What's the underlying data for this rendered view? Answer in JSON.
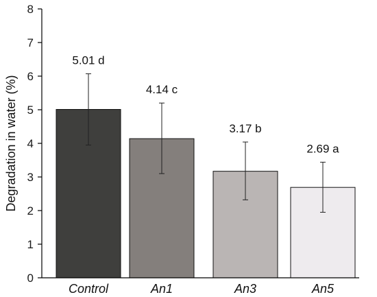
{
  "chart_data": {
    "type": "bar",
    "title": "",
    "xlabel": "",
    "ylabel": "Degradation in water (%)",
    "ylim": [
      0,
      8
    ],
    "yticks": [
      0,
      1,
      2,
      3,
      4,
      5,
      6,
      7,
      8
    ],
    "categories": [
      "Control",
      "An1",
      "An3",
      "An5"
    ],
    "values": [
      5.01,
      4.14,
      3.17,
      2.69
    ],
    "error_low": [
      3.95,
      3.1,
      2.32,
      1.95
    ],
    "error_high": [
      6.07,
      5.2,
      4.04,
      3.44
    ],
    "data_labels": [
      "5.01 d",
      "4.14 c",
      "3.17 b",
      "2.69 a"
    ],
    "bar_colors": [
      "#3f3f3d",
      "#847f7c",
      "#bab5b4",
      "#eeebee"
    ],
    "grid": false,
    "legend": "none"
  }
}
